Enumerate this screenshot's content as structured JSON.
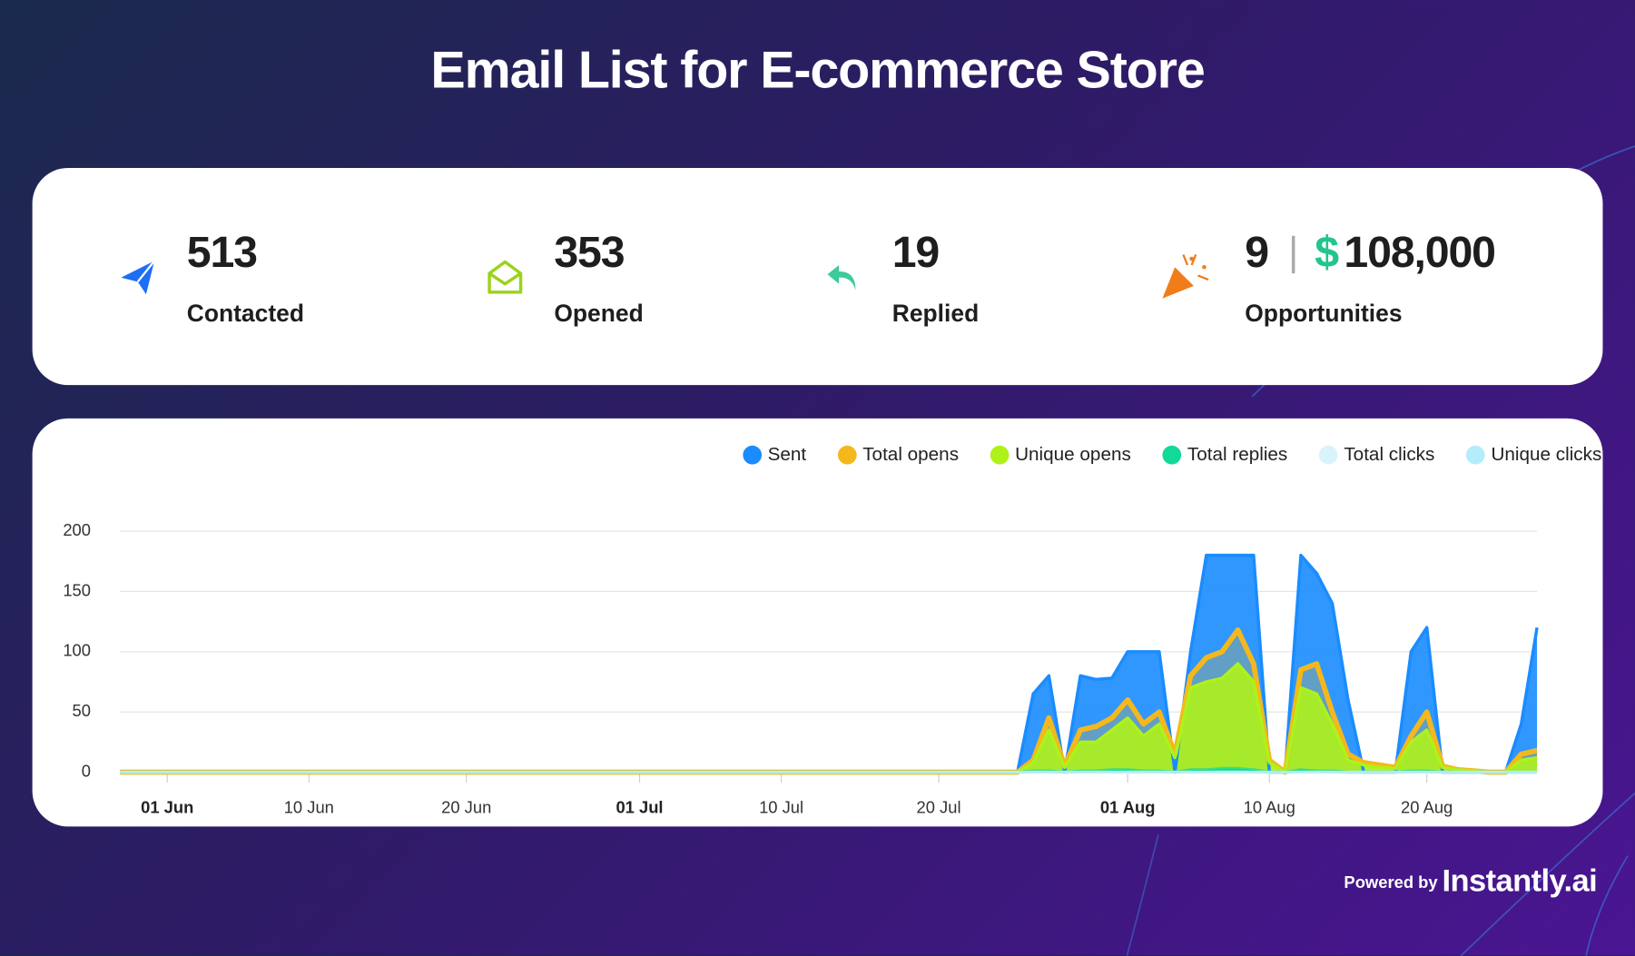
{
  "header": {
    "title": "Email List for E-commerce Store"
  },
  "stats": [
    {
      "value": "513",
      "label": "Contacted"
    },
    {
      "value": "353",
      "label": "Opened"
    },
    {
      "value": "19",
      "label": "Replied"
    },
    {
      "value": "9",
      "currency": "$",
      "amount": "108,000",
      "label": "Opportunities"
    }
  ],
  "chart_data": {
    "type": "area",
    "x": [
      "05-29",
      "07-24",
      "07-25",
      "07-26",
      "07-27",
      "07-28",
      "07-29",
      "07-30",
      "07-31",
      "08-01",
      "08-02",
      "08-03",
      "08-04",
      "08-05",
      "08-06",
      "08-07",
      "08-08",
      "08-09",
      "08-10",
      "08-11",
      "08-12",
      "08-13",
      "08-14",
      "08-15",
      "08-16",
      "08-17",
      "08-18",
      "08-19",
      "08-20",
      "08-21",
      "08-22",
      "08-23",
      "08-24",
      "08-25",
      "08-26",
      "08-27"
    ],
    "xlim": [
      "05-29",
      "08-27"
    ],
    "xticks": [
      {
        "value": "06-01",
        "label": "01 Jun"
      },
      {
        "value": "06-10",
        "label": "10 Jun"
      },
      {
        "value": "06-20",
        "label": "20 Jun"
      },
      {
        "value": "07-01",
        "label": "01 Jul"
      },
      {
        "value": "07-10",
        "label": "10 Jul"
      },
      {
        "value": "07-20",
        "label": "20 Jul"
      },
      {
        "value": "08-01",
        "label": "01 Aug"
      },
      {
        "value": "08-10",
        "label": "10 Aug"
      },
      {
        "value": "08-20",
        "label": "20 Aug"
      }
    ],
    "ylim": [
      0,
      200
    ],
    "yticks": [
      0,
      50,
      100,
      150,
      200
    ],
    "grid": true,
    "series": [
      {
        "name": "Sent",
        "color": "#1a8cff",
        "values": [
          0,
          0,
          0,
          65,
          80,
          0,
          80,
          77,
          78,
          100,
          100,
          100,
          0,
          100,
          180,
          180,
          180,
          180,
          0,
          0,
          180,
          165,
          140,
          60,
          0,
          0,
          0,
          100,
          120,
          0,
          0,
          0,
          0,
          0,
          40,
          120
        ]
      },
      {
        "name": "Total opens",
        "color": "#f5b81c",
        "values": [
          0,
          0,
          0,
          10,
          45,
          5,
          35,
          38,
          45,
          60,
          40,
          50,
          15,
          80,
          95,
          100,
          118,
          90,
          10,
          0,
          85,
          90,
          50,
          15,
          8,
          6,
          4,
          30,
          50,
          5,
          2,
          1,
          0,
          0,
          15,
          18
        ]
      },
      {
        "name": "Unique opens",
        "color": "#aef21a",
        "values": [
          0,
          0,
          0,
          8,
          35,
          4,
          25,
          25,
          35,
          45,
          30,
          40,
          12,
          70,
          75,
          78,
          90,
          75,
          8,
          0,
          70,
          65,
          40,
          10,
          6,
          4,
          3,
          25,
          35,
          4,
          2,
          1,
          0,
          0,
          10,
          12
        ]
      },
      {
        "name": "Total replies",
        "color": "#12d99a",
        "values": [
          0,
          0,
          0,
          1,
          1,
          0,
          1,
          1,
          2,
          2,
          1,
          1,
          0,
          2,
          2,
          3,
          3,
          2,
          0,
          0,
          2,
          1,
          1,
          0,
          0,
          0,
          0,
          1,
          1,
          0,
          0,
          0,
          0,
          0,
          0,
          0
        ]
      },
      {
        "name": "Total clicks",
        "color": "#d9f3fb",
        "values": [
          0,
          0,
          0,
          0,
          0,
          0,
          0,
          0,
          0,
          0,
          0,
          0,
          0,
          0,
          0,
          0,
          0,
          0,
          0,
          0,
          0,
          0,
          0,
          0,
          0,
          0,
          0,
          0,
          0,
          0,
          0,
          0,
          0,
          0,
          0,
          0
        ]
      },
      {
        "name": "Unique clicks",
        "color": "#b3ecfb",
        "values": [
          0,
          0,
          0,
          0,
          0,
          0,
          0,
          0,
          0,
          0,
          0,
          0,
          0,
          0,
          0,
          0,
          0,
          0,
          0,
          0,
          0,
          0,
          0,
          0,
          0,
          0,
          0,
          0,
          0,
          0,
          0,
          0,
          0,
          0,
          0,
          0
        ]
      }
    ]
  },
  "footer": {
    "prefix": "Powered by",
    "brand": "Instantly.ai"
  }
}
